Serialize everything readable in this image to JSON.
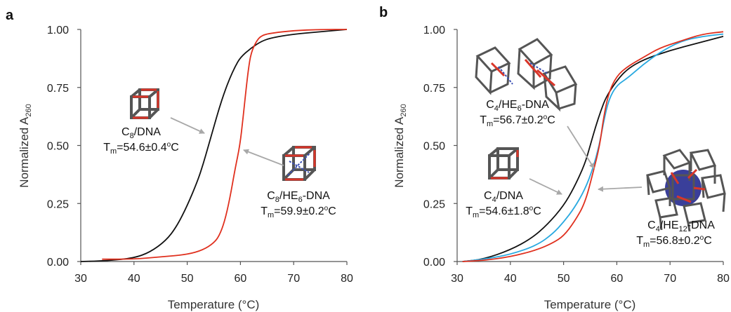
{
  "chart_data": [
    {
      "type": "line",
      "panel_label": "a",
      "xlabel": "Temperature (°C)",
      "ylabel": "Normalized A260",
      "xlim": [
        30,
        80
      ],
      "ylim": [
        0,
        1
      ],
      "x_ticks": [
        30,
        40,
        50,
        60,
        70,
        80
      ],
      "y_ticks": [
        "0.00",
        "0.25",
        "0.50",
        "0.75",
        "1.00"
      ],
      "grid": false,
      "legend": "none",
      "series": [
        {
          "color": "#111111",
          "points": [
            [
              30,
              0.0
            ],
            [
              35,
              0.003
            ],
            [
              40,
              0.015
            ],
            [
              43,
              0.04
            ],
            [
              46,
              0.09
            ],
            [
              48,
              0.15
            ],
            [
              50,
              0.24
            ],
            [
              52,
              0.35
            ],
            [
              53,
              0.42
            ],
            [
              54,
              0.5
            ],
            [
              55,
              0.58
            ],
            [
              56,
              0.66
            ],
            [
              57,
              0.73
            ],
            [
              58,
              0.79
            ],
            [
              59,
              0.84
            ],
            [
              60,
              0.88
            ],
            [
              62,
              0.92
            ],
            [
              64,
              0.95
            ],
            [
              66,
              0.965
            ],
            [
              70,
              0.98
            ],
            [
              75,
              0.99
            ],
            [
              80,
              1.0
            ]
          ]
        },
        {
          "color": "#e0301e",
          "points": [
            [
              34,
              0.01
            ],
            [
              40,
              0.01
            ],
            [
              45,
              0.02
            ],
            [
              50,
              0.03
            ],
            [
              53,
              0.05
            ],
            [
              55,
              0.08
            ],
            [
              56,
              0.11
            ],
            [
              57,
              0.17
            ],
            [
              58,
              0.27
            ],
            [
              59,
              0.4
            ],
            [
              59.9,
              0.5
            ],
            [
              60.5,
              0.62
            ],
            [
              61,
              0.73
            ],
            [
              61.5,
              0.83
            ],
            [
              62,
              0.9
            ],
            [
              63,
              0.95
            ],
            [
              64,
              0.975
            ],
            [
              66,
              0.985
            ],
            [
              70,
              0.995
            ],
            [
              75,
              1.0
            ],
            [
              80,
              1.0
            ]
          ]
        }
      ],
      "annotations": [
        {
          "formula": "C8/DNA",
          "tm": "Tm=54.6±0.4°C"
        },
        {
          "formula": "C8/HE6-DNA",
          "tm": "Tm=59.9±0.2°C"
        }
      ]
    },
    {
      "type": "line",
      "panel_label": "b",
      "xlabel": "Temperature (°C)",
      "ylabel": "Normalized A260",
      "xlim": [
        30,
        80
      ],
      "ylim": [
        0,
        1
      ],
      "x_ticks": [
        30,
        40,
        50,
        60,
        70,
        80
      ],
      "y_ticks": [
        "0.00",
        "0.25",
        "0.50",
        "0.75",
        "1.00"
      ],
      "grid": false,
      "legend": "none",
      "series": [
        {
          "color": "#111111",
          "points": [
            [
              31,
              0.0
            ],
            [
              35,
              0.01
            ],
            [
              40,
              0.05
            ],
            [
              44,
              0.1
            ],
            [
              47,
              0.16
            ],
            [
              50,
              0.24
            ],
            [
              52,
              0.32
            ],
            [
              54,
              0.42
            ],
            [
              55,
              0.5
            ],
            [
              56,
              0.58
            ],
            [
              57,
              0.65
            ],
            [
              58,
              0.71
            ],
            [
              60,
              0.78
            ],
            [
              62,
              0.83
            ],
            [
              65,
              0.87
            ],
            [
              70,
              0.91
            ],
            [
              75,
              0.94
            ],
            [
              80,
              0.97
            ]
          ]
        },
        {
          "color": "#29a9e0",
          "points": [
            [
              31,
              0.0
            ],
            [
              35,
              0.01
            ],
            [
              40,
              0.03
            ],
            [
              45,
              0.07
            ],
            [
              48,
              0.12
            ],
            [
              50,
              0.17
            ],
            [
              52,
              0.23
            ],
            [
              54,
              0.31
            ],
            [
              55.5,
              0.4
            ],
            [
              56.7,
              0.5
            ],
            [
              57.5,
              0.6
            ],
            [
              58.5,
              0.7
            ],
            [
              60,
              0.76
            ],
            [
              62,
              0.79
            ],
            [
              65,
              0.85
            ],
            [
              68,
              0.9
            ],
            [
              72,
              0.95
            ],
            [
              76,
              0.97
            ],
            [
              80,
              0.98
            ]
          ]
        },
        {
          "color": "#e0301e",
          "points": [
            [
              31,
              0.0
            ],
            [
              35,
              0.005
            ],
            [
              40,
              0.02
            ],
            [
              45,
              0.05
            ],
            [
              48,
              0.08
            ],
            [
              50,
              0.11
            ],
            [
              52,
              0.17
            ],
            [
              54,
              0.25
            ],
            [
              55.5,
              0.38
            ],
            [
              56.8,
              0.5
            ],
            [
              57.5,
              0.62
            ],
            [
              58.5,
              0.73
            ],
            [
              60,
              0.8
            ],
            [
              62,
              0.84
            ],
            [
              65,
              0.88
            ],
            [
              68,
              0.92
            ],
            [
              72,
              0.95
            ],
            [
              76,
              0.98
            ],
            [
              80,
              0.99
            ]
          ]
        }
      ],
      "annotations": [
        {
          "formula": "C4/HE6-DNA",
          "tm": "Tm=56.7±0.2°C"
        },
        {
          "formula": "C4/DNA",
          "tm": "Tm=54.6±1.8°C"
        },
        {
          "formula": "C4/HE12-DNA",
          "tm": "Tm=56.8±0.2°C"
        }
      ]
    }
  ]
}
